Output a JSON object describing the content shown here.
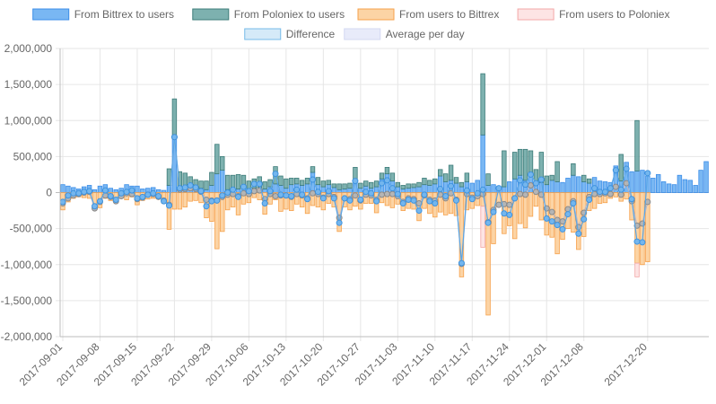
{
  "chart_data": {
    "type": "bar",
    "legend_position": "top",
    "grid": true,
    "ylim": [
      -2000000,
      2000000
    ],
    "y_ticks": [
      2000000,
      1500000,
      1000000,
      500000,
      0,
      -500000,
      -1000000,
      -1500000,
      -2000000
    ],
    "y_tick_labels": [
      "2,000,000",
      "1,500,000",
      "1,000,000",
      "500,000",
      "0",
      "-500,000",
      "-1,000,000",
      "-1,500,000",
      "-2,000,000"
    ],
    "x_tick_labels": [
      "2017-09-01",
      "2017-09-08",
      "2017-09-15",
      "2017-09-22",
      "2017-09-29",
      "2017-10-06",
      "2017-10-13",
      "2017-10-20",
      "2017-10-27",
      "2017-11-03",
      "2017-11-10",
      "2017-11-17",
      "2017-11-24",
      "2017-12-01",
      "2017-12-08",
      "2017-12-20"
    ],
    "x_tick_positions": [
      "2017-09-01",
      "2017-09-08",
      "2017-09-15",
      "2017-09-22",
      "2017-09-29",
      "2017-10-06",
      "2017-10-13",
      "2017-10-20",
      "2017-10-27",
      "2017-11-03",
      "2017-11-10",
      "2017-11-17",
      "2017-11-24",
      "2017-12-01",
      "2017-12-08",
      "2017-12-20"
    ],
    "x_start": "2017-09-01",
    "x_end": "2017-12-20",
    "colors": {
      "bittrex_to_users": "#6aaff2",
      "poloniex_to_users": "#6fa8a6",
      "users_to_bittrex": "#fccf9b",
      "users_to_poloniex": "#fde1e1",
      "difference": "#5aa6e6",
      "average": "#a7a7a7"
    },
    "series": [
      {
        "name": "From Bittrex to users",
        "values": [
          110000,
          90000,
          70000,
          50000,
          80000,
          100000,
          40000,
          90000,
          110000,
          60000,
          40000,
          60000,
          110000,
          90000,
          90000,
          50000,
          60000,
          70000,
          40000,
          30000,
          100000,
          770000,
          70000,
          80000,
          90000,
          70000,
          60000,
          40000,
          100000,
          260000,
          310000,
          40000,
          60000,
          50000,
          90000,
          40000,
          60000,
          70000,
          50000,
          80000,
          120000,
          100000,
          60000,
          110000,
          120000,
          100000,
          120000,
          280000,
          110000,
          80000,
          110000,
          70000,
          40000,
          50000,
          60000,
          150000,
          60000,
          90000,
          60000,
          80000,
          190000,
          260000,
          160000,
          80000,
          50000,
          60000,
          70000,
          80000,
          110000,
          100000,
          120000,
          230000,
          150000,
          170000,
          130000,
          80000,
          150000,
          130000,
          170000,
          800000,
          100000,
          110000,
          90000,
          80000,
          150000,
          190000,
          240000,
          170000,
          280000,
          120000,
          140000,
          110000,
          170000,
          150000,
          140000,
          200000,
          240000,
          220000,
          150000,
          130000,
          210000,
          160000,
          150000,
          140000,
          370000,
          160000,
          420000,
          290000,
          300000,
          310000,
          230000,
          200000,
          250000,
          150000,
          120000,
          110000,
          240000,
          180000,
          170000,
          100000,
          310000,
          430000
        ]
      },
      {
        "name": "From Poloniex to users",
        "values": [
          0,
          0,
          0,
          0,
          0,
          0,
          0,
          0,
          0,
          0,
          0,
          0,
          0,
          0,
          0,
          0,
          0,
          0,
          0,
          0,
          230000,
          530000,
          220000,
          190000,
          130000,
          110000,
          100000,
          120000,
          180000,
          410000,
          190000,
          200000,
          180000,
          200000,
          150000,
          120000,
          130000,
          150000,
          100000,
          100000,
          240000,
          130000,
          130000,
          90000,
          80000,
          70000,
          80000,
          80000,
          100000,
          80000,
          60000,
          50000,
          80000,
          70000,
          70000,
          200000,
          70000,
          70000,
          80000,
          80000,
          80000,
          90000,
          110000,
          60000,
          50000,
          60000,
          50000,
          60000,
          90000,
          70000,
          70000,
          90000,
          110000,
          210000,
          80000,
          60000,
          120000,
          0,
          0,
          850000,
          160000,
          0,
          0,
          500000,
          0,
          370000,
          360000,
          430000,
          300000,
          200000,
          420000,
          120000,
          70000,
          280000,
          0,
          0,
          160000,
          0,
          90000,
          60000,
          0,
          0,
          0,
          0,
          0,
          370000,
          0,
          0,
          700000
        ]
      },
      {
        "name": "From users to Bittrex",
        "values": [
          -240000,
          -130000,
          -80000,
          -60000,
          -70000,
          -80000,
          -230000,
          -210000,
          -80000,
          -110000,
          -140000,
          -70000,
          -100000,
          -60000,
          -170000,
          -110000,
          -90000,
          -80000,
          -90000,
          -150000,
          -510000,
          -230000,
          -230000,
          -200000,
          -120000,
          -110000,
          -140000,
          -350000,
          -400000,
          -780000,
          -540000,
          -240000,
          -200000,
          -310000,
          -160000,
          -140000,
          -70000,
          -100000,
          -300000,
          -160000,
          -100000,
          -260000,
          -230000,
          -250000,
          -160000,
          -200000,
          -290000,
          -180000,
          -200000,
          -240000,
          -150000,
          -200000,
          -540000,
          -200000,
          -240000,
          -190000,
          -230000,
          -150000,
          -150000,
          -280000,
          -140000,
          -180000,
          -210000,
          -160000,
          -250000,
          -220000,
          -230000,
          -390000,
          -220000,
          -290000,
          -340000,
          -270000,
          -310000,
          -290000,
          -320000,
          -1170000,
          -240000,
          -220000,
          -180000,
          -190000,
          -1700000,
          -710000,
          -190000,
          -570000,
          -460000,
          -640000,
          -430000,
          -490000,
          -330000,
          -190000,
          -380000,
          -590000,
          -620000,
          -850000,
          -650000,
          -500000,
          -550000,
          -790000,
          -610000,
          -250000,
          -220000,
          -150000,
          -140000,
          -80000,
          -60000,
          -120000,
          -90000,
          -380000,
          -980000,
          -1000000,
          -960000
        ]
      },
      {
        "name": "From users to Poloniex",
        "values": [
          0,
          0,
          0,
          0,
          0,
          0,
          0,
          0,
          0,
          0,
          0,
          0,
          0,
          0,
          0,
          0,
          0,
          0,
          0,
          0,
          0,
          0,
          0,
          0,
          0,
          0,
          0,
          0,
          0,
          0,
          0,
          0,
          0,
          0,
          0,
          0,
          0,
          0,
          0,
          0,
          0,
          0,
          0,
          0,
          0,
          0,
          0,
          0,
          0,
          0,
          0,
          0,
          0,
          0,
          0,
          0,
          0,
          0,
          0,
          0,
          0,
          0,
          0,
          0,
          0,
          0,
          0,
          0,
          0,
          0,
          0,
          0,
          0,
          0,
          0,
          0,
          0,
          0,
          0,
          -570000,
          0,
          0,
          0,
          0,
          0,
          0,
          0,
          0,
          0,
          0,
          0,
          0,
          0,
          0,
          0,
          0,
          0,
          0,
          0,
          0,
          0,
          0,
          0,
          0,
          0,
          0,
          0,
          0,
          -190000,
          0,
          0
        ]
      },
      {
        "name": "Difference",
        "values": [
          -130000,
          -40000,
          -10000,
          -10000,
          10000,
          20000,
          -190000,
          -120000,
          30000,
          -50000,
          -100000,
          -10000,
          10000,
          30000,
          -80000,
          -60000,
          -30000,
          -10000,
          -50000,
          -120000,
          -180000,
          770000,
          60000,
          70000,
          100000,
          70000,
          20000,
          -190000,
          -120000,
          -110000,
          -40000,
          0,
          40000,
          -60000,
          80000,
          20000,
          120000,
          120000,
          -150000,
          20000,
          260000,
          -30000,
          -40000,
          -50000,
          40000,
          -30000,
          -90000,
          180000,
          10000,
          -80000,
          20000,
          -80000,
          -420000,
          -80000,
          -110000,
          160000,
          -100000,
          10000,
          -10000,
          -120000,
          130000,
          170000,
          60000,
          -20000,
          -150000,
          -100000,
          -110000,
          -250000,
          -30000,
          -120000,
          -150000,
          50000,
          -50000,
          90000,
          -110000,
          -980000,
          30000,
          -90000,
          -10000,
          40000,
          -420000,
          -270000,
          60000,
          -290000,
          -310000,
          -80000,
          170000,
          110000,
          250000,
          130000,
          180000,
          -360000,
          -400000,
          -450000,
          -510000,
          -300000,
          -150000,
          -570000,
          -370000,
          -100000,
          60000,
          10000,
          10000,
          60000,
          310000,
          40000,
          330000,
          -90000,
          -680000,
          -690000,
          270000
        ]
      },
      {
        "name": "Average per day",
        "values": [
          -150000,
          -80000,
          -40000,
          -20000,
          0,
          10000,
          -220000,
          -130000,
          -40000,
          -60000,
          -120000,
          -50000,
          -10000,
          -20000,
          -90000,
          -70000,
          -30000,
          -20000,
          -60000,
          -110000,
          -170000,
          770000,
          40000,
          50000,
          60000,
          50000,
          10000,
          -100000,
          -110000,
          -110000,
          -60000,
          -30000,
          -20000,
          -50000,
          -10000,
          -20000,
          20000,
          30000,
          -90000,
          -20000,
          -50000,
          -40000,
          -40000,
          -60000,
          -20000,
          -40000,
          -80000,
          -10000,
          -20000,
          -70000,
          -20000,
          -60000,
          -350000,
          -80000,
          -90000,
          -40000,
          -110000,
          -30000,
          -40000,
          -100000,
          -30000,
          -20000,
          -20000,
          -50000,
          -130000,
          -80000,
          -90000,
          -150000,
          -40000,
          -100000,
          -110000,
          -30000,
          -80000,
          -10000,
          -100000,
          -990000,
          -20000,
          -70000,
          -50000,
          -20000,
          -410000,
          -240000,
          -170000,
          -160000,
          -170000,
          -80000,
          -20000,
          -30000,
          100000,
          10000,
          -30000,
          -220000,
          -270000,
          -380000,
          -400000,
          -230000,
          -120000,
          -480000,
          -280000,
          -60000,
          -20000,
          -20000,
          -10000,
          -20000,
          80000,
          -30000,
          130000,
          -120000,
          -460000,
          -430000,
          -130000
        ]
      }
    ]
  }
}
